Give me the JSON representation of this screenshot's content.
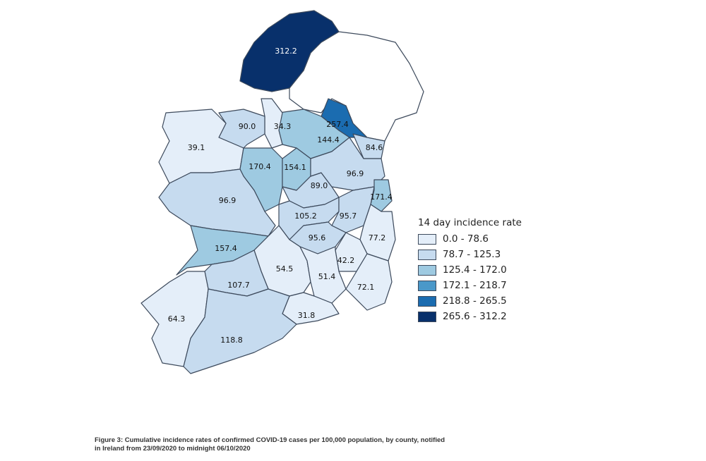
{
  "legend": {
    "title": "14 day incidence rate",
    "classes": [
      {
        "label": "0.0 - 78.6",
        "color": "#e4eef9"
      },
      {
        "label": "78.7 - 125.3",
        "color": "#c6dbef"
      },
      {
        "label": "125.4 - 172.0",
        "color": "#9ecae1"
      },
      {
        "label": "172.1 - 218.7",
        "color": "#4a98c9"
      },
      {
        "label": "218.8 - 265.5",
        "color": "#1b6cb0"
      },
      {
        "label": "265.6 - 312.2",
        "color": "#08306b"
      }
    ]
  },
  "counties": [
    {
      "value": "312.2",
      "cls": 5
    },
    {
      "value": "257.4",
      "cls": 4
    },
    {
      "value": "144.4",
      "cls": 2
    },
    {
      "value": "84.6",
      "cls": 1
    },
    {
      "value": "34.3",
      "cls": 0
    },
    {
      "value": "90.0",
      "cls": 1
    },
    {
      "value": "39.1",
      "cls": 0
    },
    {
      "value": "170.4",
      "cls": 2
    },
    {
      "value": "154.1",
      "cls": 2
    },
    {
      "value": "89.0",
      "cls": 1
    },
    {
      "value": "96.9",
      "cls": 1
    },
    {
      "value": "171.4",
      "cls": 2
    },
    {
      "value": "96.9",
      "cls": 1
    },
    {
      "value": "105.2",
      "cls": 1
    },
    {
      "value": "95.7",
      "cls": 1
    },
    {
      "value": "95.6",
      "cls": 1
    },
    {
      "value": "77.2",
      "cls": 0
    },
    {
      "value": "157.4",
      "cls": 2
    },
    {
      "value": "42.2",
      "cls": 0
    },
    {
      "value": "54.5",
      "cls": 0
    },
    {
      "value": "51.4",
      "cls": 0
    },
    {
      "value": "72.1",
      "cls": 0
    },
    {
      "value": "107.7",
      "cls": 1
    },
    {
      "value": "31.8",
      "cls": 0
    },
    {
      "value": "64.3",
      "cls": 0
    },
    {
      "value": "118.8",
      "cls": 1
    }
  ],
  "caption": {
    "line1": "Figure 3: Cumulative incidence rates of confirmed COVID-19 cases per 100,000 population, by county, notified",
    "line2": "in Ireland from 23/09/2020 to midnight 06/10/2020"
  }
}
